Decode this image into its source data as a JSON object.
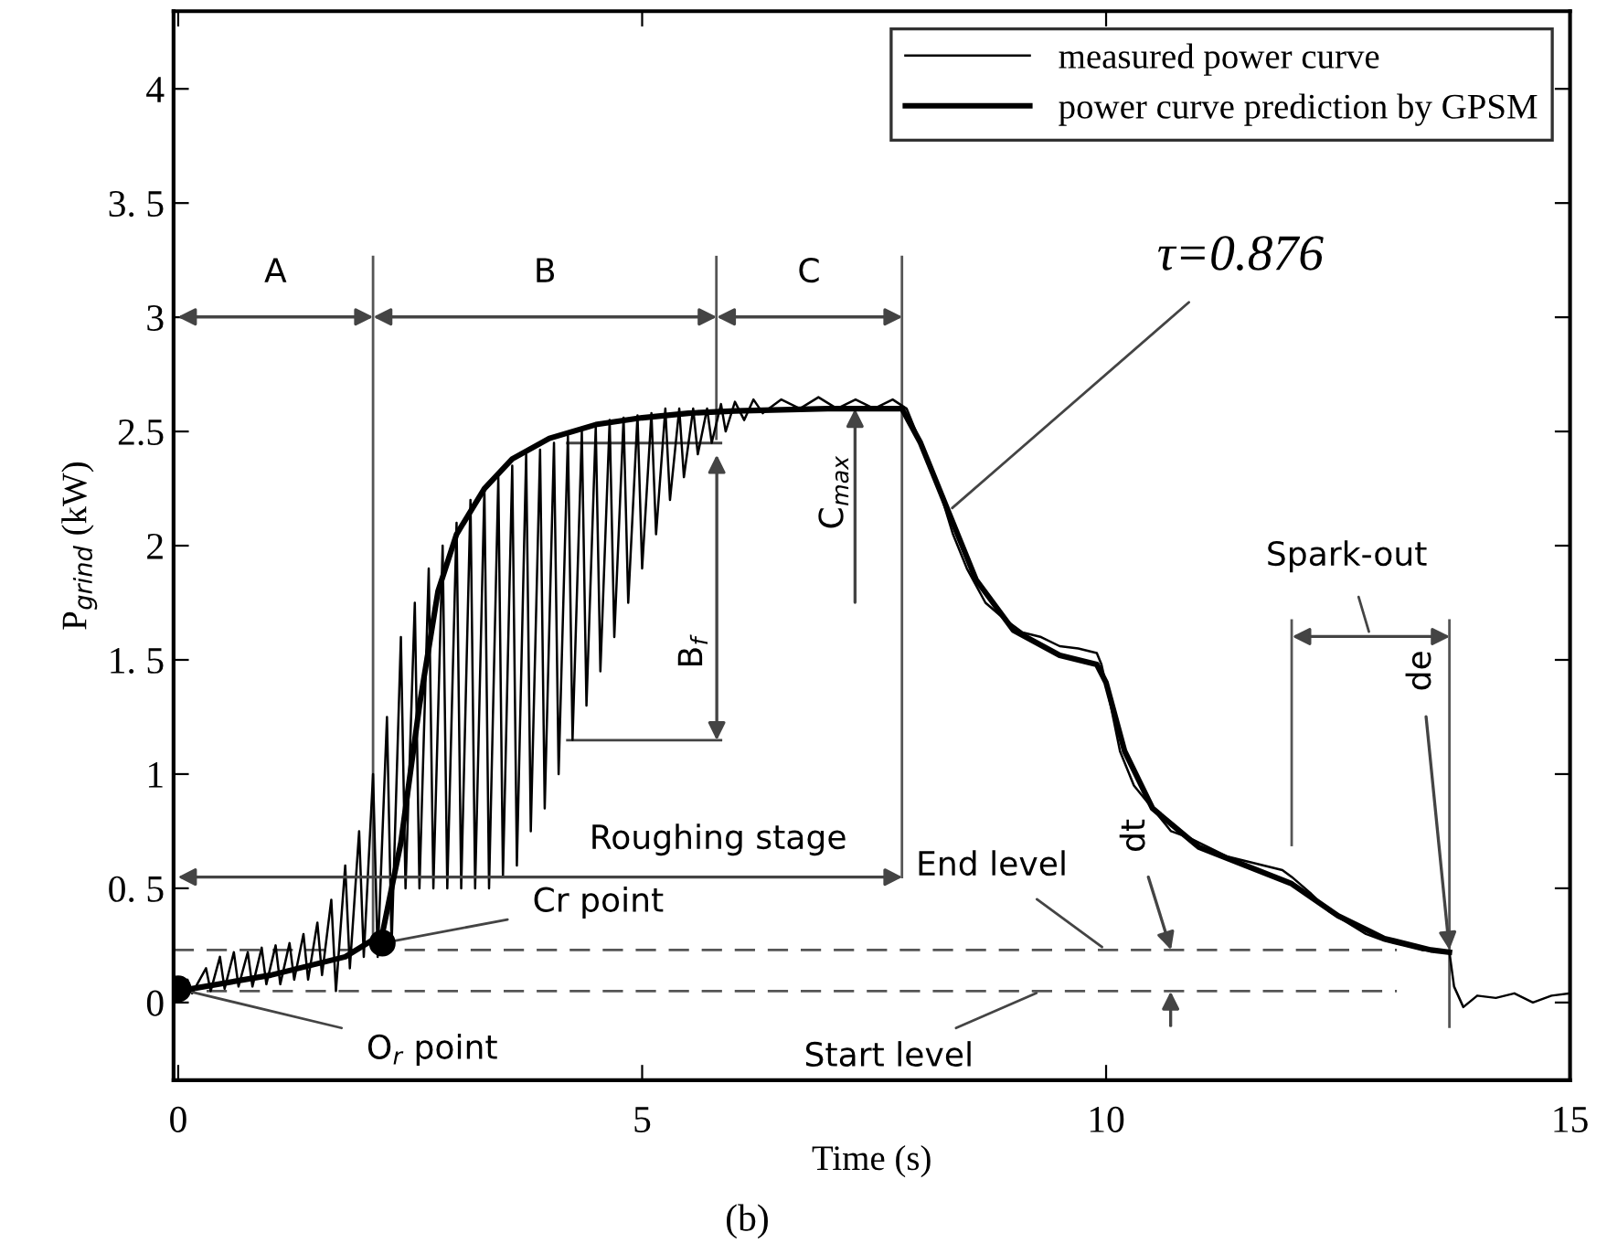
{
  "chart_data": {
    "type": "line",
    "xlabel": "Time (s)",
    "ylabel": "P$_{grind}$ (kW)",
    "xlim": [
      -0.05,
      15
    ],
    "ylim": [
      -0.34,
      4.34
    ],
    "xticks": [
      0,
      5,
      10,
      15
    ],
    "yticks": [
      0,
      {
        "value": 0.5,
        "label": "0. 5"
      },
      1,
      {
        "value": 1.5,
        "label": "1. 5"
      },
      2,
      2.5,
      3,
      {
        "value": 3.5,
        "label": "3. 5"
      },
      4
    ],
    "legend": "top right",
    "series": [
      {
        "name": "measured power curve",
        "color": "#000000",
        "x": [
          0,
          0.1,
          0.15,
          0.3,
          0.35,
          0.45,
          0.5,
          0.6,
          0.65,
          0.75,
          0.8,
          0.9,
          0.95,
          1.05,
          1.1,
          1.2,
          1.25,
          1.35,
          1.4,
          1.5,
          1.55,
          1.65,
          1.7,
          1.8,
          1.85,
          1.95,
          2.0,
          2.1,
          2.15,
          2.25,
          2.3,
          2.4,
          2.45,
          2.55,
          2.6,
          2.7,
          2.75,
          2.85,
          2.9,
          3.0,
          3.05,
          3.15,
          3.2,
          3.3,
          3.35,
          3.45,
          3.5,
          3.6,
          3.65,
          3.75,
          3.8,
          3.9,
          3.95,
          4.05,
          4.1,
          4.2,
          4.25,
          4.35,
          4.4,
          4.5,
          4.55,
          4.65,
          4.7,
          4.8,
          4.85,
          4.95,
          5.0,
          5.1,
          5.15,
          5.25,
          5.3,
          5.4,
          5.45,
          5.55,
          5.6,
          5.7,
          5.75,
          5.85,
          5.9,
          6.0,
          6.1,
          6.2,
          6.3,
          6.5,
          6.7,
          6.9,
          7.1,
          7.3,
          7.5,
          7.7,
          7.85,
          8.0,
          8.2,
          8.35,
          8.5,
          8.7,
          8.9,
          9.1,
          9.3,
          9.5,
          9.7,
          9.9,
          9.95,
          10.05,
          10.15,
          10.3,
          10.5,
          10.7,
          10.9,
          11.1,
          11.3,
          11.5,
          11.7,
          11.9,
          12.0,
          12.2,
          12.4,
          12.6,
          12.8,
          13.0,
          13.2,
          13.4,
          13.7,
          13.75,
          13.85,
          14.0,
          14.2,
          14.4,
          14.6,
          14.8,
          15.0
        ],
        "values": [
          0.05,
          0.1,
          0.04,
          0.15,
          0.05,
          0.2,
          0.06,
          0.22,
          0.07,
          0.22,
          0.07,
          0.24,
          0.08,
          0.25,
          0.08,
          0.26,
          0.1,
          0.3,
          0.1,
          0.35,
          0.12,
          0.45,
          0.05,
          0.6,
          0.15,
          0.75,
          0.2,
          1.0,
          0.2,
          1.25,
          0.25,
          1.6,
          0.5,
          1.75,
          0.5,
          1.9,
          0.5,
          2.0,
          0.5,
          2.1,
          0.5,
          2.2,
          0.5,
          2.25,
          0.5,
          2.3,
          0.55,
          2.35,
          0.6,
          2.4,
          0.75,
          2.42,
          0.85,
          2.45,
          1.0,
          2.48,
          1.15,
          2.5,
          1.3,
          2.52,
          1.45,
          2.55,
          1.6,
          2.56,
          1.75,
          2.57,
          1.9,
          2.58,
          2.05,
          2.6,
          2.2,
          2.6,
          2.3,
          2.6,
          2.4,
          2.6,
          2.45,
          2.62,
          2.5,
          2.63,
          2.55,
          2.64,
          2.58,
          2.64,
          2.6,
          2.65,
          2.6,
          2.64,
          2.6,
          2.64,
          2.6,
          2.45,
          2.25,
          2.05,
          1.9,
          1.75,
          1.68,
          1.62,
          1.6,
          1.56,
          1.55,
          1.53,
          1.48,
          1.3,
          1.1,
          0.95,
          0.85,
          0.75,
          0.72,
          0.68,
          0.64,
          0.62,
          0.6,
          0.58,
          0.55,
          0.48,
          0.4,
          0.35,
          0.3,
          0.27,
          0.25,
          0.23,
          0.22,
          0.07,
          -0.02,
          0.03,
          0.02,
          0.04,
          0.0,
          0.03,
          0.04
        ]
      },
      {
        "name": "power curve prediction by GPSM",
        "color": "#000000",
        "x": [
          0,
          1.0,
          1.8,
          2.2,
          2.4,
          2.6,
          2.8,
          3.0,
          3.3,
          3.6,
          4.0,
          4.5,
          5.0,
          5.5,
          6.0,
          7.0,
          7.8,
          8.0,
          8.3,
          8.6,
          9.0,
          9.5,
          9.9,
          10.0,
          10.2,
          10.5,
          11.0,
          11.5,
          12.0,
          12.5,
          13.0,
          13.5,
          13.7
        ],
        "values": [
          0.05,
          0.12,
          0.2,
          0.3,
          0.7,
          1.3,
          1.8,
          2.05,
          2.25,
          2.38,
          2.47,
          2.53,
          2.56,
          2.58,
          2.59,
          2.6,
          2.6,
          2.45,
          2.15,
          1.85,
          1.63,
          1.52,
          1.48,
          1.4,
          1.1,
          0.85,
          0.68,
          0.6,
          0.52,
          0.38,
          0.28,
          0.23,
          0.22
        ]
      },
      {
        "type": "scatter",
        "color": "#000000",
        "marker": "circle",
        "x": [
          0,
          2.2
        ],
        "values": [
          0.06,
          0.26
        ]
      }
    ],
    "ref_lines": [
      {
        "axis": "y",
        "value": 0.05,
        "line_style": "dashed",
        "color": "#555555"
      },
      {
        "axis": "y",
        "value": 0.23,
        "line_style": "dashed",
        "color": "#555555"
      },
      {
        "axis": "x",
        "value": 2.1,
        "line_style": "solid",
        "color": "#555555"
      },
      {
        "axis": "x",
        "value": 5.8,
        "line_style": "solid",
        "color": "#555555"
      },
      {
        "axis": "x",
        "value": 7.8,
        "line_style": "solid",
        "color": "#555555"
      },
      {
        "axis": "x",
        "value": 12.0,
        "line_style": "solid",
        "color": "#555555"
      },
      {
        "axis": "x",
        "value": 13.7,
        "line_style": "solid",
        "color": "#555555"
      }
    ],
    "annotations": [
      {
        "text": "τ=0.876",
        "x": 8.3,
        "y": 2.15
      },
      {
        "text": "Cr point",
        "x": 2.2,
        "y": 0.26
      },
      {
        "text": "O$_{r}$ point",
        "x": 0,
        "y": 0.06
      },
      {
        "text": "End level",
        "x": 10.0,
        "y": 0.23
      },
      {
        "text": "Start level",
        "x": 9.3,
        "y": 0.05
      },
      "A",
      "B",
      "C",
      "Roughing stage",
      "Spark-out",
      "B$_{f}$",
      "C$_{max}$",
      {
        "text": "dt",
        "x": 10.7,
        "y": 0.23
      },
      {
        "text": "de",
        "x": 13.7,
        "y": 0.23
      },
      "(b)"
    ]
  }
}
